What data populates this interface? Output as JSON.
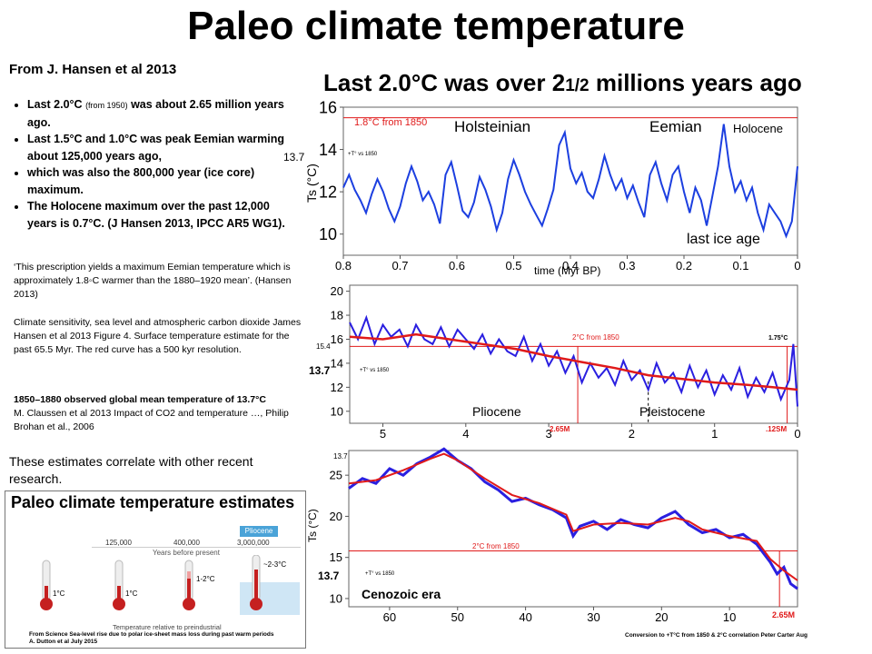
{
  "slide": {
    "title": "Paleo climate temperature",
    "source": "From J. Hansen  et al 2013",
    "bullets": [
      {
        "pre": "Last 2.0°C ",
        "small": "(from 1950)",
        "post": " was about 2.65 million years ago."
      },
      {
        "pre": "Last 1.5°C and 1.0°C was peak Eemian warming about 125,000 years ago,",
        "small": "",
        "post": ""
      },
      {
        "pre": "which was also the 800,000 year (ice core) maximum.",
        "small": "",
        "post": ""
      },
      {
        "pre": "The Holocene maximum over the past 12,000  years is 0.7°C.  (J Hansen 2013, IPCC AR5 WG1).",
        "small": "",
        "post": ""
      }
    ],
    "quote": "‘This prescription yields a maximum Eemian temperature  which is approximately 1.8◦C warmer than the 1880–1920 mean’.  (Hansen 2013)",
    "refs": "Climate sensitivity, sea level and atmospheric carbon dioxide James Hansen et al  2013 Figure 4. Surface temperature  estimate for the past 65.5 Myr. The red curve has a 500 kyr resolution.",
    "obs_bold": "1850–1880 observed global  mean temperature of 13.7°C",
    "obs_ref": "M. Claussen et al 2013 Impact of CO2 and temperature  …, Philip Brohan et al., 2006",
    "correlate": "These estimates correlate with other recent research.",
    "subtitle_pre": "Last 2.0°C was over 2",
    "subtitle_sub": "1/2",
    "subtitle_post": " millions years ago"
  },
  "inset": {
    "title": "Paleo climate temperature estimates",
    "years": [
      "125,000",
      "400,000",
      "3,000,000"
    ],
    "badge": "Pliocene",
    "axis_label": "Years before present",
    "therm_labels": [
      "1°C",
      "1°C",
      "1-2°C",
      "~2-3°C"
    ],
    "caption": "Temperature relative to preindustrial",
    "credit1": "From Science Sea-level rise due to polar ice-sheet mass loss during past warm periods",
    "credit2": "A. Dutton et al July 2015"
  },
  "chart_data": [
    {
      "type": "line",
      "ylabel": "Ts (°C)",
      "xlabel": "time (Myr BP)",
      "x_ticks": [
        "0.8",
        "0.7",
        "0.6",
        "0.5",
        "0.4",
        "0.3",
        "0.2",
        "0.1",
        "0"
      ],
      "y_ticks": [
        "10",
        "12",
        "14",
        "16"
      ],
      "xlim": [
        0.8,
        0
      ],
      "ylim": [
        9,
        16
      ],
      "reference_line": {
        "value": 15.5,
        "label": "1.8°C from 1850"
      },
      "left_label": "13.7",
      "small_label": "+T° vs 1850",
      "annotations": [
        "Holsteinian",
        "Eemian",
        "Holocene",
        "last ice age"
      ],
      "series": [
        {
          "color": "#1c3fe0",
          "x": [
            0.8,
            0.79,
            0.78,
            0.77,
            0.76,
            0.75,
            0.74,
            0.73,
            0.72,
            0.71,
            0.7,
            0.69,
            0.68,
            0.67,
            0.66,
            0.65,
            0.64,
            0.63,
            0.62,
            0.61,
            0.6,
            0.59,
            0.58,
            0.57,
            0.56,
            0.55,
            0.54,
            0.53,
            0.52,
            0.51,
            0.5,
            0.49,
            0.48,
            0.47,
            0.46,
            0.45,
            0.44,
            0.43,
            0.42,
            0.41,
            0.4,
            0.39,
            0.38,
            0.37,
            0.36,
            0.35,
            0.34,
            0.33,
            0.32,
            0.31,
            0.3,
            0.29,
            0.28,
            0.27,
            0.26,
            0.25,
            0.24,
            0.23,
            0.22,
            0.21,
            0.2,
            0.19,
            0.18,
            0.17,
            0.16,
            0.15,
            0.14,
            0.13,
            0.12,
            0.11,
            0.1,
            0.09,
            0.08,
            0.07,
            0.06,
            0.05,
            0.04,
            0.03,
            0.02,
            0.01,
            0.0
          ],
          "values": [
            12.2,
            12.8,
            12.1,
            11.6,
            11.0,
            11.9,
            12.6,
            12.0,
            11.2,
            10.6,
            11.3,
            12.4,
            13.2,
            12.5,
            11.6,
            12.0,
            11.4,
            10.5,
            12.8,
            13.4,
            12.3,
            11.1,
            10.8,
            11.5,
            12.7,
            12.1,
            11.3,
            10.2,
            11.0,
            12.6,
            13.5,
            12.8,
            12.0,
            11.4,
            10.9,
            10.4,
            11.2,
            12.1,
            14.2,
            14.8,
            13.1,
            12.4,
            12.9,
            12.0,
            11.7,
            12.6,
            13.7,
            12.8,
            12.1,
            12.6,
            11.7,
            12.3,
            11.5,
            10.8,
            12.8,
            13.4,
            12.4,
            11.6,
            12.8,
            13.2,
            12.0,
            11.0,
            12.2,
            11.6,
            10.4,
            11.8,
            13.2,
            15.2,
            13.2,
            12.0,
            12.5,
            11.6,
            12.2,
            11.0,
            10.2,
            11.4,
            11.0,
            10.6,
            9.9,
            10.6,
            13.2
          ]
        }
      ]
    },
    {
      "type": "line",
      "xlabel": "",
      "x_ticks": [
        "5",
        "4",
        "3",
        "2",
        "1",
        "0"
      ],
      "y_ticks": [
        "10",
        "12",
        "14",
        "16",
        "18",
        "20"
      ],
      "xlim": [
        5.4,
        0
      ],
      "ylim": [
        9,
        20.5
      ],
      "reference_line": {
        "value": 15.4,
        "label": "2°C from 1850"
      },
      "left_labels": [
        "15.4",
        "13.7"
      ],
      "small_label": "+T° vs 1850",
      "right_label": "1.75°C",
      "markers": [
        "2.65M",
        ".12SM"
      ],
      "eras": [
        "Pliocene",
        "Pleistocene"
      ],
      "series": [
        {
          "name": "",
          "color": "#2a1fe0",
          "x": [
            5.4,
            5.3,
            5.2,
            5.1,
            5.0,
            4.9,
            4.8,
            4.7,
            4.6,
            4.5,
            4.4,
            4.3,
            4.2,
            4.1,
            4.0,
            3.9,
            3.8,
            3.7,
            3.6,
            3.5,
            3.4,
            3.3,
            3.2,
            3.1,
            3.0,
            2.9,
            2.8,
            2.7,
            2.6,
            2.5,
            2.4,
            2.3,
            2.2,
            2.1,
            2.0,
            1.9,
            1.8,
            1.7,
            1.6,
            1.5,
            1.4,
            1.3,
            1.2,
            1.1,
            1.0,
            0.9,
            0.8,
            0.7,
            0.6,
            0.5,
            0.4,
            0.3,
            0.2,
            0.1,
            0.05,
            0.0
          ],
          "values": [
            17.4,
            16.0,
            17.8,
            15.6,
            17.2,
            16.2,
            16.8,
            15.4,
            17.2,
            16.0,
            15.6,
            17.0,
            15.4,
            16.8,
            16.0,
            15.2,
            16.4,
            14.8,
            16.0,
            15.0,
            14.6,
            16.2,
            14.2,
            15.6,
            13.8,
            15.0,
            13.2,
            14.6,
            12.4,
            14.0,
            12.8,
            13.6,
            12.2,
            14.2,
            12.6,
            13.4,
            11.8,
            14.0,
            12.4,
            13.2,
            11.6,
            13.8,
            12.0,
            13.4,
            11.4,
            13.0,
            11.8,
            13.6,
            11.2,
            12.8,
            11.6,
            13.2,
            11.0,
            12.6,
            15.6,
            10.4
          ]
        },
        {
          "name": "",
          "color": "#e01a1a",
          "x": [
            5.4,
            5.0,
            4.6,
            4.2,
            3.8,
            3.4,
            3.0,
            2.6,
            2.2,
            1.8,
            1.4,
            1.0,
            0.6,
            0.3,
            0.0
          ],
          "values": [
            16.2,
            16.0,
            16.4,
            16.0,
            15.6,
            15.2,
            14.6,
            14.1,
            13.6,
            13.0,
            12.7,
            12.4,
            12.2,
            12.0,
            11.8
          ]
        }
      ]
    },
    {
      "type": "line",
      "ylabel": "Ts (°C)",
      "x_ticks": [
        "60",
        "50",
        "40",
        "30",
        "20",
        "10"
      ],
      "y_ticks": [
        "10",
        "15",
        "20",
        "25"
      ],
      "xlim": [
        66,
        0
      ],
      "ylim": [
        9,
        28
      ],
      "reference_line": {
        "value": 15.8,
        "label": "2°C from 1850"
      },
      "left_labels": [
        "13.7",
        "13.7"
      ],
      "small_label": "+T° vs 1850",
      "era_label": "Cenozoic era",
      "marker": "2.65M",
      "footer": "Conversion to +T°C from 1850 & 2°C correlation  Peter Carter Aug",
      "series": [
        {
          "name": "",
          "color": "#2a1fe0",
          "x": [
            66,
            64,
            62,
            60,
            58,
            56,
            54,
            52,
            50,
            48,
            46,
            44,
            42,
            40,
            38,
            36,
            34,
            33,
            32,
            30,
            28,
            26,
            24,
            22,
            20,
            18,
            16,
            14,
            12,
            10,
            8,
            6,
            4,
            3,
            2,
            1,
            0
          ],
          "values": [
            23.4,
            24.6,
            24.0,
            25.8,
            25.0,
            26.4,
            27.2,
            28.2,
            26.8,
            25.8,
            24.2,
            23.2,
            21.8,
            22.2,
            21.4,
            20.8,
            19.8,
            17.6,
            18.8,
            19.4,
            18.4,
            19.6,
            19.0,
            18.6,
            19.8,
            20.6,
            19.0,
            18.0,
            18.4,
            17.4,
            17.8,
            16.6,
            14.4,
            13.0,
            13.8,
            11.8,
            11.2
          ]
        },
        {
          "name": "",
          "color": "#e01a1a",
          "x": [
            66,
            62,
            58,
            54,
            52,
            50,
            46,
            42,
            38,
            34,
            33,
            30,
            26,
            22,
            18,
            16,
            14,
            10,
            6,
            4,
            2,
            0
          ],
          "values": [
            24.0,
            24.4,
            25.6,
            27.0,
            27.6,
            26.8,
            24.6,
            22.6,
            21.6,
            20.2,
            18.2,
            19.0,
            19.2,
            19.0,
            19.8,
            19.4,
            18.4,
            17.6,
            17.0,
            14.8,
            13.4,
            12.2
          ]
        }
      ]
    }
  ]
}
